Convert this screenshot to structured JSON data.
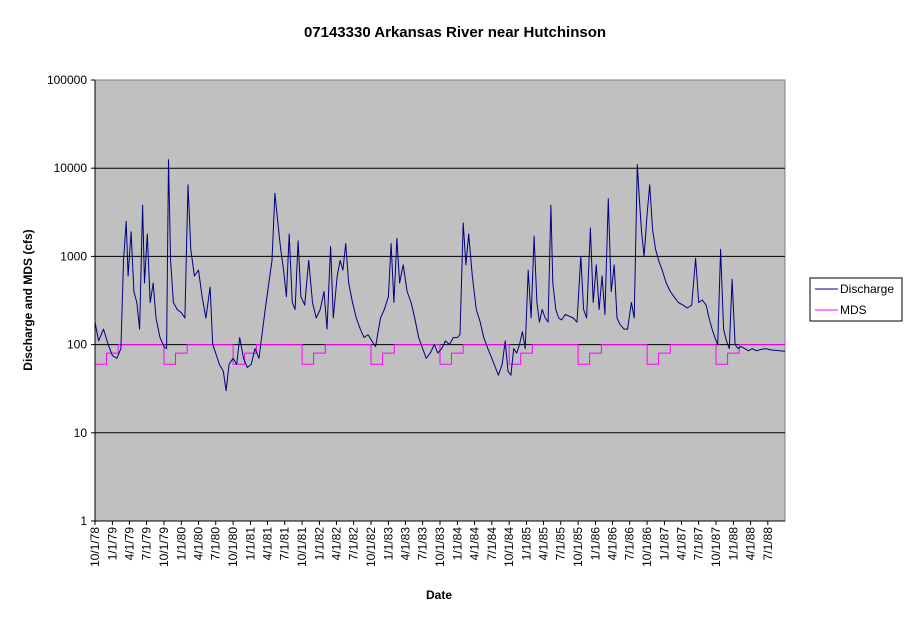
{
  "chart_data": {
    "type": "line",
    "title": "07143330 Arkansas River near Hutchinson",
    "xlabel": "Date",
    "ylabel": "Discharge and MDS (cfs)",
    "y_scale": "log",
    "ylim": [
      1,
      100000
    ],
    "y_ticks": [
      "1",
      "10",
      "100",
      "1000",
      "10000",
      "100000"
    ],
    "xlim": [
      "1978-10-01",
      "1988-09-30"
    ],
    "x_tick_labels": [
      "10/1/78",
      "1/1/79",
      "4/1/79",
      "7/1/79",
      "10/1/79",
      "1/1/80",
      "4/1/80",
      "7/1/80",
      "10/1/80",
      "1/1/81",
      "4/1/81",
      "7/1/81",
      "10/1/81",
      "1/1/82",
      "4/1/82",
      "7/1/82",
      "10/1/82",
      "1/1/83",
      "4/1/83",
      "7/1/83",
      "10/1/83",
      "1/1/84",
      "4/1/84",
      "7/1/84",
      "10/1/84",
      "1/1/85",
      "4/1/85",
      "7/1/85",
      "10/1/85",
      "1/1/86",
      "4/1/86",
      "7/1/86",
      "10/1/86",
      "1/1/87",
      "4/1/87",
      "7/1/87",
      "10/1/87",
      "1/1/88",
      "4/1/88",
      "7/1/88"
    ],
    "grid": "horizontal major",
    "plot_background": "#c0c0c0",
    "legend_position": "right",
    "series": [
      {
        "name": "Discharge",
        "color": "#000080",
        "points": [
          [
            "1978-10-01",
            180
          ],
          [
            "1978-10-20",
            110
          ],
          [
            "1978-11-15",
            150
          ],
          [
            "1978-12-10",
            100
          ],
          [
            "1979-01-01",
            75
          ],
          [
            "1979-01-25",
            70
          ],
          [
            "1979-02-15",
            90
          ],
          [
            "1979-03-01",
            900
          ],
          [
            "1979-03-15",
            2500
          ],
          [
            "1979-03-25",
            600
          ],
          [
            "1979-04-10",
            1900
          ],
          [
            "1979-04-25",
            400
          ],
          [
            "1979-05-10",
            300
          ],
          [
            "1979-05-25",
            150
          ],
          [
            "1979-06-10",
            3800
          ],
          [
            "1979-06-20",
            500
          ],
          [
            "1979-07-05",
            1800
          ],
          [
            "1979-07-20",
            300
          ],
          [
            "1979-08-05",
            500
          ],
          [
            "1979-08-20",
            200
          ],
          [
            "1979-09-10",
            120
          ],
          [
            "1979-10-01",
            95
          ],
          [
            "1979-10-15",
            90
          ],
          [
            "1979-10-25",
            12500
          ],
          [
            "1979-11-05",
            900
          ],
          [
            "1979-11-20",
            300
          ],
          [
            "1979-12-10",
            250
          ],
          [
            "1980-01-01",
            230
          ],
          [
            "1980-01-20",
            200
          ],
          [
            "1980-02-05",
            6500
          ],
          [
            "1980-02-20",
            1200
          ],
          [
            "1980-03-10",
            600
          ],
          [
            "1980-04-01",
            700
          ],
          [
            "1980-04-20",
            350
          ],
          [
            "1980-05-10",
            200
          ],
          [
            "1980-06-01",
            450
          ],
          [
            "1980-06-15",
            100
          ],
          [
            "1980-07-01",
            80
          ],
          [
            "1980-07-20",
            60
          ],
          [
            "1980-08-10",
            50
          ],
          [
            "1980-08-25",
            30
          ],
          [
            "1980-09-10",
            60
          ],
          [
            "1980-10-01",
            70
          ],
          [
            "1980-10-20",
            60
          ],
          [
            "1980-11-05",
            120
          ],
          [
            "1980-11-25",
            70
          ],
          [
            "1980-12-15",
            55
          ],
          [
            "1981-01-05",
            60
          ],
          [
            "1981-01-25",
            90
          ],
          [
            "1981-02-15",
            70
          ],
          [
            "1981-03-01",
            120
          ],
          [
            "1981-03-20",
            250
          ],
          [
            "1981-04-05",
            450
          ],
          [
            "1981-04-25",
            900
          ],
          [
            "1981-05-10",
            5200
          ],
          [
            "1981-05-25",
            2500
          ],
          [
            "1981-06-10",
            1200
          ],
          [
            "1981-06-25",
            700
          ],
          [
            "1981-07-10",
            350
          ],
          [
            "1981-07-25",
            1800
          ],
          [
            "1981-08-10",
            300
          ],
          [
            "1981-08-25",
            250
          ],
          [
            "1981-09-10",
            1500
          ],
          [
            "1981-09-25",
            350
          ],
          [
            "1981-10-15",
            280
          ],
          [
            "1981-11-05",
            900
          ],
          [
            "1981-11-25",
            300
          ],
          [
            "1981-12-15",
            200
          ],
          [
            "1982-01-05",
            250
          ],
          [
            "1982-01-25",
            400
          ],
          [
            "1982-02-10",
            150
          ],
          [
            "1982-03-01",
            1300
          ],
          [
            "1982-03-15",
            200
          ],
          [
            "1982-04-05",
            600
          ],
          [
            "1982-04-20",
            900
          ],
          [
            "1982-05-05",
            700
          ],
          [
            "1982-05-20",
            1400
          ],
          [
            "1982-06-05",
            500
          ],
          [
            "1982-06-25",
            300
          ],
          [
            "1982-07-15",
            200
          ],
          [
            "1982-08-05",
            150
          ],
          [
            "1982-08-25",
            120
          ],
          [
            "1982-09-15",
            130
          ],
          [
            "1982-10-05",
            110
          ],
          [
            "1982-10-25",
            95
          ],
          [
            "1982-11-20",
            200
          ],
          [
            "1982-12-10",
            250
          ],
          [
            "1983-01-01",
            350
          ],
          [
            "1983-01-15",
            1400
          ],
          [
            "1983-01-30",
            300
          ],
          [
            "1983-02-15",
            1600
          ],
          [
            "1983-03-01",
            500
          ],
          [
            "1983-03-20",
            800
          ],
          [
            "1983-04-10",
            400
          ],
          [
            "1983-05-01",
            300
          ],
          [
            "1983-05-20",
            200
          ],
          [
            "1983-06-10",
            120
          ],
          [
            "1983-07-01",
            90
          ],
          [
            "1983-07-20",
            70
          ],
          [
            "1983-08-10",
            80
          ],
          [
            "1983-09-01",
            100
          ],
          [
            "1983-09-20",
            80
          ],
          [
            "1983-10-10",
            90
          ],
          [
            "1983-10-30",
            110
          ],
          [
            "1983-11-20",
            100
          ],
          [
            "1983-12-10",
            120
          ],
          [
            "1984-01-01",
            120
          ],
          [
            "1984-01-15",
            130
          ],
          [
            "1984-02-01",
            2400
          ],
          [
            "1984-02-15",
            800
          ],
          [
            "1984-03-01",
            1800
          ],
          [
            "1984-03-20",
            600
          ],
          [
            "1984-04-10",
            250
          ],
          [
            "1984-05-01",
            180
          ],
          [
            "1984-05-20",
            120
          ],
          [
            "1984-06-10",
            90
          ],
          [
            "1984-07-01",
            70
          ],
          [
            "1984-07-20",
            55
          ],
          [
            "1984-08-05",
            45
          ],
          [
            "1984-08-25",
            60
          ],
          [
            "1984-09-10",
            110
          ],
          [
            "1984-09-25",
            50
          ],
          [
            "1984-10-10",
            45
          ],
          [
            "1984-10-25",
            90
          ],
          [
            "1984-11-10",
            80
          ],
          [
            "1984-11-25",
            100
          ],
          [
            "1984-12-10",
            140
          ],
          [
            "1984-12-25",
            90
          ],
          [
            "1985-01-10",
            700
          ],
          [
            "1985-01-25",
            200
          ],
          [
            "1985-02-10",
            1700
          ],
          [
            "1985-02-25",
            300
          ],
          [
            "1985-03-10",
            180
          ],
          [
            "1985-03-25",
            250
          ],
          [
            "1985-04-10",
            200
          ],
          [
            "1985-04-25",
            180
          ],
          [
            "1985-05-10",
            3800
          ],
          [
            "1985-05-20",
            500
          ],
          [
            "1985-06-05",
            250
          ],
          [
            "1985-06-20",
            200
          ],
          [
            "1985-07-05",
            190
          ],
          [
            "1985-07-25",
            220
          ],
          [
            "1985-08-15",
            210
          ],
          [
            "1985-09-05",
            200
          ],
          [
            "1985-09-25",
            180
          ],
          [
            "1985-10-15",
            1000
          ],
          [
            "1985-10-30",
            250
          ],
          [
            "1985-11-15",
            200
          ],
          [
            "1985-12-05",
            2100
          ],
          [
            "1985-12-20",
            300
          ],
          [
            "1986-01-05",
            800
          ],
          [
            "1986-01-20",
            250
          ],
          [
            "1986-02-05",
            600
          ],
          [
            "1986-02-20",
            220
          ],
          [
            "1986-03-10",
            4500
          ],
          [
            "1986-03-25",
            400
          ],
          [
            "1986-04-10",
            800
          ],
          [
            "1986-04-25",
            200
          ],
          [
            "1986-05-10",
            170
          ],
          [
            "1986-06-01",
            150
          ],
          [
            "1986-06-20",
            150
          ],
          [
            "1986-07-10",
            300
          ],
          [
            "1986-07-25",
            200
          ],
          [
            "1986-08-10",
            11000
          ],
          [
            "1986-08-20",
            5000
          ],
          [
            "1986-09-01",
            2000
          ],
          [
            "1986-09-15",
            1000
          ],
          [
            "1986-10-01",
            3000
          ],
          [
            "1986-10-15",
            6500
          ],
          [
            "1986-10-30",
            2000
          ],
          [
            "1986-11-15",
            1200
          ],
          [
            "1986-12-01",
            900
          ],
          [
            "1986-12-20",
            700
          ],
          [
            "1987-01-10",
            500
          ],
          [
            "1987-02-01",
            400
          ],
          [
            "1987-02-20",
            350
          ],
          [
            "1987-03-15",
            300
          ],
          [
            "1987-04-10",
            280
          ],
          [
            "1987-05-01",
            260
          ],
          [
            "1987-05-25",
            280
          ],
          [
            "1987-06-15",
            950
          ],
          [
            "1987-07-01",
            300
          ],
          [
            "1987-07-20",
            320
          ],
          [
            "1987-08-10",
            280
          ],
          [
            "1987-08-25",
            200
          ],
          [
            "1987-09-10",
            150
          ],
          [
            "1987-09-25",
            120
          ],
          [
            "1987-10-10",
            100
          ],
          [
            "1987-10-25",
            1200
          ],
          [
            "1987-11-10",
            150
          ],
          [
            "1987-11-25",
            110
          ],
          [
            "1987-12-10",
            90
          ],
          [
            "1987-12-25",
            550
          ],
          [
            "1988-01-10",
            100
          ],
          [
            "1988-01-25",
            90
          ],
          [
            "1988-02-10",
            95
          ],
          [
            "1988-03-01",
            90
          ],
          [
            "1988-03-20",
            85
          ],
          [
            "1988-04-10",
            90
          ],
          [
            "1988-05-01",
            85
          ],
          [
            "1988-05-25",
            88
          ],
          [
            "1988-06-20",
            90
          ],
          [
            "1988-07-15",
            87
          ],
          [
            "1988-08-10",
            86
          ],
          [
            "1988-09-01",
            85
          ],
          [
            "1988-09-30",
            84
          ]
        ]
      },
      {
        "name": "MDS",
        "color": "#ff00ff",
        "annual_pattern": [
          [
            "10-01",
            60
          ],
          [
            "11-01",
            60
          ],
          [
            "12-01",
            80
          ],
          [
            "01-01",
            80
          ],
          [
            "02-01",
            100
          ],
          [
            "05-01",
            100
          ],
          [
            "06-01",
            100
          ],
          [
            "07-01",
            100
          ],
          [
            "08-01",
            100
          ],
          [
            "09-01",
            100
          ]
        ]
      }
    ]
  }
}
